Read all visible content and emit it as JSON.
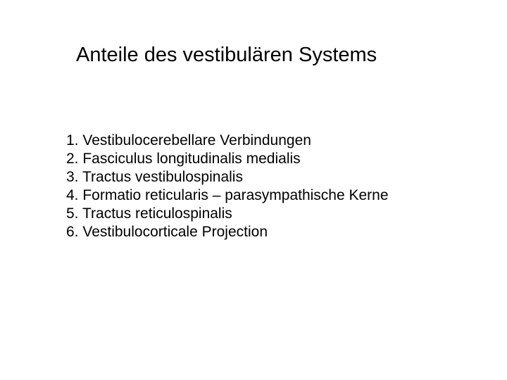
{
  "slide": {
    "title": "Anteile des vestibulären Systems",
    "items": [
      "1. Vestibulocerebellare Verbindungen",
      "2. Fasciculus longitudinalis medialis",
      "3. Tractus vestibulospinalis",
      "4. Formatio reticularis – parasympathische Kerne",
      "5. Tractus reticulospinalis",
      "6. Vestibulocorticale Projection"
    ]
  },
  "style": {
    "background_color": "#ffffff",
    "text_color": "#000000",
    "title_fontsize": 29,
    "body_fontsize": 21,
    "font_family": "Arial"
  }
}
